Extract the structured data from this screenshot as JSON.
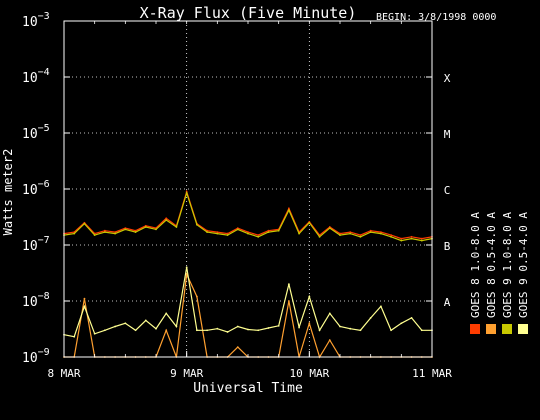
{
  "chart_data": {
    "type": "line",
    "title": "X-Ray Flux (Five Minute)",
    "begin_label": "BEGIN: 3/8/1998 0000",
    "xlabel": "Universal Time",
    "ylabel": "Watts meter2",
    "y_scale": "log",
    "ylim": [
      1e-09,
      0.001
    ],
    "xlim": [
      "1998-03-08T00:00",
      "1998-03-11T00:00"
    ],
    "x_ticks": [
      "8 MAR",
      "9 MAR",
      "10 MAR",
      "11 MAR"
    ],
    "y_ticks": [
      {
        "base": "10",
        "exp": "−3",
        "value": 0.001
      },
      {
        "base": "10",
        "exp": "−4",
        "value": 0.0001
      },
      {
        "base": "10",
        "exp": "−5",
        "value": 1e-05
      },
      {
        "base": "10",
        "exp": "−6",
        "value": 1e-06
      },
      {
        "base": "10",
        "exp": "−7",
        "value": 1e-07
      },
      {
        "base": "10",
        "exp": "−8",
        "value": 1e-08
      },
      {
        "base": "10",
        "exp": "−9",
        "value": 1e-09
      }
    ],
    "flare_classes": [
      {
        "label": "X",
        "value": 0.0001
      },
      {
        "label": "M",
        "value": 1e-05
      },
      {
        "label": "C",
        "value": 1e-06
      },
      {
        "label": "B",
        "value": 1e-07
      },
      {
        "label": "A",
        "value": 1e-08
      }
    ],
    "grid": true,
    "legend_position": "right, vertical",
    "series": [
      {
        "name": "GOES 8 1.0-8.0 A",
        "color": "#ff3c00",
        "x": [
          "1998-03-08T00:00",
          "1998-03-08T02:00",
          "1998-03-08T04:00",
          "1998-03-08T06:00",
          "1998-03-08T08:00",
          "1998-03-08T10:00",
          "1998-03-08T12:00",
          "1998-03-08T14:00",
          "1998-03-08T16:00",
          "1998-03-08T18:00",
          "1998-03-08T20:00",
          "1998-03-08T22:00",
          "1998-03-09T00:00",
          "1998-03-09T02:00",
          "1998-03-09T04:00",
          "1998-03-09T06:00",
          "1998-03-09T08:00",
          "1998-03-09T10:00",
          "1998-03-09T12:00",
          "1998-03-09T14:00",
          "1998-03-09T16:00",
          "1998-03-09T18:00",
          "1998-03-09T20:00",
          "1998-03-09T22:00",
          "1998-03-10T00:00",
          "1998-03-10T02:00",
          "1998-03-10T04:00",
          "1998-03-10T06:00",
          "1998-03-10T08:00",
          "1998-03-10T10:00",
          "1998-03-10T12:00",
          "1998-03-10T14:00",
          "1998-03-10T16:00",
          "1998-03-10T18:00",
          "1998-03-10T20:00",
          "1998-03-10T22:00",
          "1998-03-11T00:00"
        ],
        "values": [
          1.6e-07,
          1.7e-07,
          2.5e-07,
          1.6e-07,
          1.8e-07,
          1.7e-07,
          2e-07,
          1.8e-07,
          2.2e-07,
          2e-07,
          3e-07,
          2.2e-07,
          9e-07,
          2.4e-07,
          1.8e-07,
          1.7e-07,
          1.6e-07,
          2e-07,
          1.7e-07,
          1.5e-07,
          1.8e-07,
          1.9e-07,
          4.5e-07,
          1.7e-07,
          2.6e-07,
          1.5e-07,
          2.1e-07,
          1.6e-07,
          1.7e-07,
          1.5e-07,
          1.8e-07,
          1.7e-07,
          1.5e-07,
          1.3e-07,
          1.4e-07,
          1.3e-07,
          1.4e-07
        ]
      },
      {
        "name": "GOES 8 0.5-4.0 A",
        "color": "#ffa030",
        "x": [
          "1998-03-08T00:00",
          "1998-03-08T02:00",
          "1998-03-08T04:00",
          "1998-03-08T06:00",
          "1998-03-08T08:00",
          "1998-03-08T10:00",
          "1998-03-08T12:00",
          "1998-03-08T14:00",
          "1998-03-08T16:00",
          "1998-03-08T18:00",
          "1998-03-08T20:00",
          "1998-03-08T22:00",
          "1998-03-09T00:00",
          "1998-03-09T02:00",
          "1998-03-09T04:00",
          "1998-03-09T06:00",
          "1998-03-09T08:00",
          "1998-03-09T10:00",
          "1998-03-09T12:00",
          "1998-03-09T14:00",
          "1998-03-09T16:00",
          "1998-03-09T18:00",
          "1998-03-09T20:00",
          "1998-03-09T22:00",
          "1998-03-10T00:00",
          "1998-03-10T02:00",
          "1998-03-10T04:00",
          "1998-03-10T06:00",
          "1998-03-10T08:00",
          "1998-03-10T10:00",
          "1998-03-10T12:00",
          "1998-03-10T14:00",
          "1998-03-10T16:00",
          "1998-03-10T18:00",
          "1998-03-10T20:00",
          "1998-03-10T22:00",
          "1998-03-11T00:00"
        ],
        "values": [
          1e-09,
          1e-09,
          1.1e-08,
          1e-09,
          1e-09,
          1e-09,
          1e-09,
          1e-09,
          1e-09,
          1e-09,
          3e-09,
          1e-09,
          3e-08,
          1.2e-08,
          1e-09,
          1e-09,
          1e-09,
          1.5e-09,
          1e-09,
          1e-09,
          1e-09,
          1e-09,
          1e-08,
          1e-09,
          4e-09,
          1e-09,
          2e-09,
          1e-09,
          1e-09,
          1e-09,
          1e-09,
          1e-09,
          1e-09,
          1e-09,
          1e-09,
          1e-09,
          1e-09
        ]
      },
      {
        "name": "GOES 9 1.0-8.0 A",
        "color": "#c8c800",
        "x": [
          "1998-03-08T00:00",
          "1998-03-08T02:00",
          "1998-03-08T04:00",
          "1998-03-08T06:00",
          "1998-03-08T08:00",
          "1998-03-08T10:00",
          "1998-03-08T12:00",
          "1998-03-08T14:00",
          "1998-03-08T16:00",
          "1998-03-08T18:00",
          "1998-03-08T20:00",
          "1998-03-08T22:00",
          "1998-03-09T00:00",
          "1998-03-09T02:00",
          "1998-03-09T04:00",
          "1998-03-09T06:00",
          "1998-03-09T08:00",
          "1998-03-09T10:00",
          "1998-03-09T12:00",
          "1998-03-09T14:00",
          "1998-03-09T16:00",
          "1998-03-09T18:00",
          "1998-03-09T20:00",
          "1998-03-09T22:00",
          "1998-03-10T00:00",
          "1998-03-10T02:00",
          "1998-03-10T04:00",
          "1998-03-10T06:00",
          "1998-03-10T08:00",
          "1998-03-10T10:00",
          "1998-03-10T12:00",
          "1998-03-10T14:00",
          "1998-03-10T16:00",
          "1998-03-10T18:00",
          "1998-03-10T20:00",
          "1998-03-10T22:00",
          "1998-03-11T00:00"
        ],
        "values": [
          1.5e-07,
          1.6e-07,
          2.4e-07,
          1.5e-07,
          1.7e-07,
          1.6e-07,
          1.9e-07,
          1.7e-07,
          2.1e-07,
          1.9e-07,
          2.8e-07,
          2.1e-07,
          8.5e-07,
          2.3e-07,
          1.7e-07,
          1.6e-07,
          1.5e-07,
          1.9e-07,
          1.6e-07,
          1.4e-07,
          1.7e-07,
          1.8e-07,
          4.2e-07,
          1.6e-07,
          2.5e-07,
          1.4e-07,
          2e-07,
          1.5e-07,
          1.6e-07,
          1.4e-07,
          1.7e-07,
          1.6e-07,
          1.4e-07,
          1.2e-07,
          1.3e-07,
          1.2e-07,
          1.3e-07
        ]
      },
      {
        "name": "GOES 9 0.5-4.0 A",
        "color": "#ffff90",
        "x": [
          "1998-03-08T00:00",
          "1998-03-08T02:00",
          "1998-03-08T04:00",
          "1998-03-08T06:00",
          "1998-03-08T08:00",
          "1998-03-08T10:00",
          "1998-03-08T12:00",
          "1998-03-08T14:00",
          "1998-03-08T16:00",
          "1998-03-08T18:00",
          "1998-03-08T20:00",
          "1998-03-08T22:00",
          "1998-03-09T00:00",
          "1998-03-09T02:00",
          "1998-03-09T04:00",
          "1998-03-09T06:00",
          "1998-03-09T08:00",
          "1998-03-09T10:00",
          "1998-03-09T12:00",
          "1998-03-09T14:00",
          "1998-03-09T16:00",
          "1998-03-09T18:00",
          "1998-03-09T20:00",
          "1998-03-09T22:00",
          "1998-03-10T00:00",
          "1998-03-10T02:00",
          "1998-03-10T04:00",
          "1998-03-10T06:00",
          "1998-03-10T08:00",
          "1998-03-10T10:00",
          "1998-03-10T12:00",
          "1998-03-10T14:00",
          "1998-03-10T16:00",
          "1998-03-10T18:00",
          "1998-03-10T20:00",
          "1998-03-10T22:00",
          "1998-03-11T00:00"
        ],
        "values": [
          2.5e-09,
          2.3e-09,
          8e-09,
          2.6e-09,
          3e-09,
          3.5e-09,
          4e-09,
          3e-09,
          4.5e-09,
          3.2e-09,
          6e-09,
          3.5e-09,
          4e-08,
          3e-09,
          3e-09,
          3.2e-09,
          2.8e-09,
          3.5e-09,
          3.1e-09,
          3e-09,
          3.3e-09,
          3.6e-09,
          2e-08,
          3.4e-09,
          1.2e-08,
          3e-09,
          6e-09,
          3.5e-09,
          3.2e-09,
          3e-09,
          5e-09,
          8e-09,
          3e-09,
          4e-09,
          5e-09,
          3e-09,
          3e-09
        ]
      }
    ]
  }
}
